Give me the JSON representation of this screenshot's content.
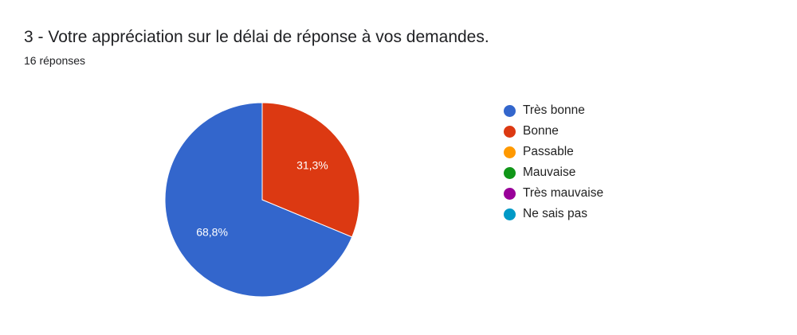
{
  "question": {
    "title": "3 - Votre appréciation sur le délai de réponse à vos demandes.",
    "response_count": "16 réponses"
  },
  "chart_data": {
    "type": "pie",
    "title": "3 - Votre appréciation sur le délai de réponse à vos demandes.",
    "categories": [
      "Très bonne",
      "Bonne",
      "Passable",
      "Mauvaise",
      "Très mauvaise",
      "Ne sais pas"
    ],
    "values": [
      68.8,
      31.3,
      0,
      0,
      0,
      0
    ],
    "value_labels": [
      "68,8%",
      "31,3%",
      "",
      "",
      "",
      ""
    ],
    "colors": [
      "#3366cc",
      "#dc3912",
      "#ff9900",
      "#109618",
      "#990099",
      "#0099c6"
    ],
    "legend_position": "right"
  }
}
